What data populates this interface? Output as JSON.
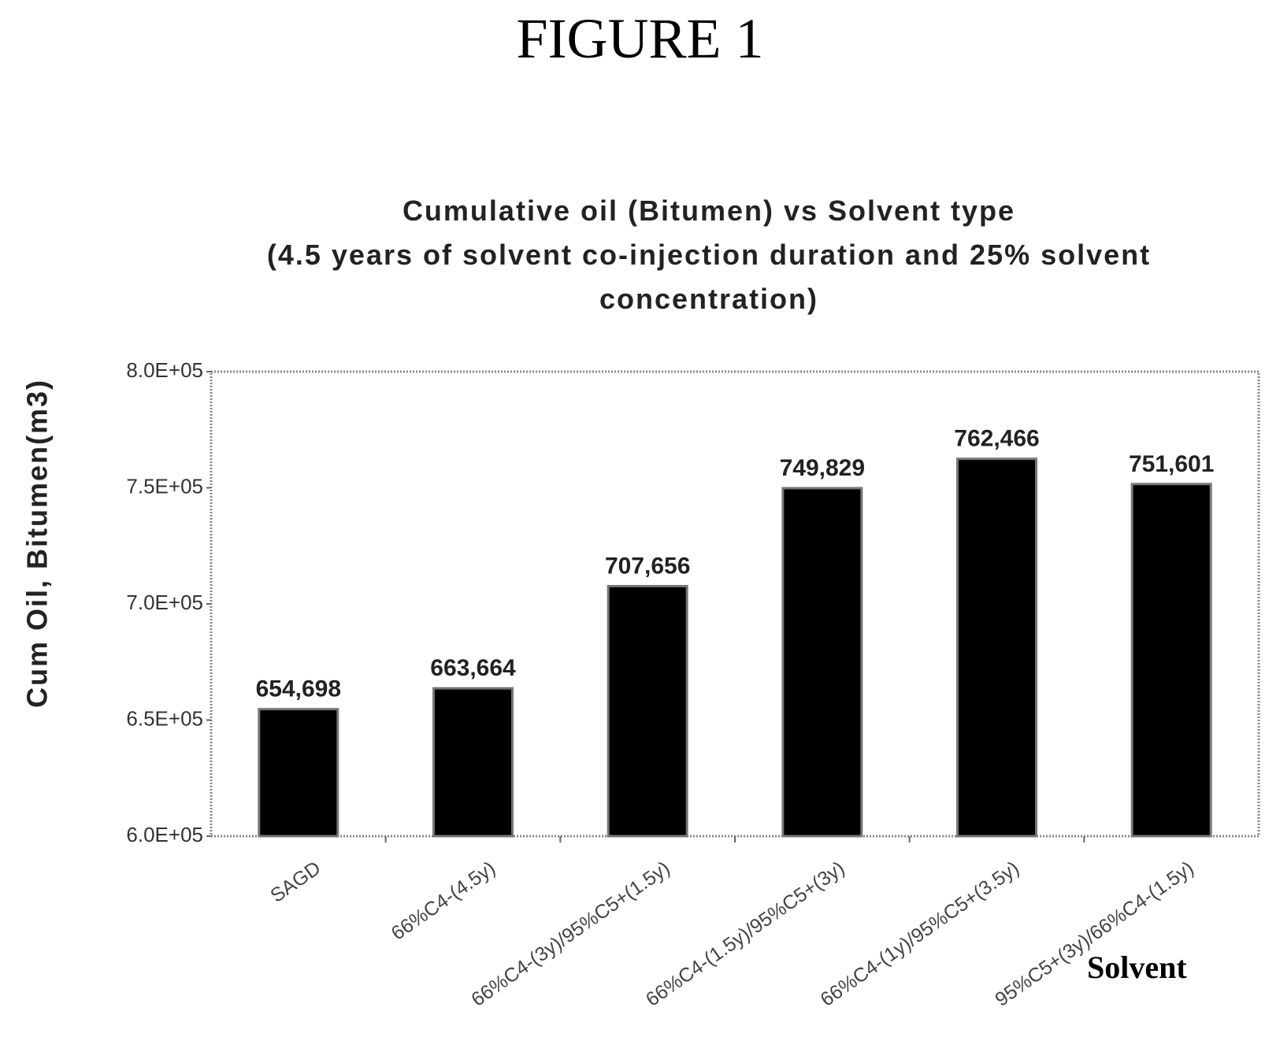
{
  "figure_label": "FIGURE 1",
  "chart_data": {
    "type": "bar",
    "title_lines": [
      "Cumulative oil (Bitumen) vs Solvent type",
      "(4.5 years of solvent co-injection duration and 25% solvent",
      "concentration)"
    ],
    "xlabel": "Solvent",
    "ylabel": "Cum Oil, Bitumen(m3)",
    "ylim": [
      600000,
      800000
    ],
    "yticks": [
      600000,
      650000,
      700000,
      750000,
      800000
    ],
    "ytick_labels": [
      "6.0E+05",
      "6.5E+05",
      "7.0E+05",
      "7.5E+05",
      "8.0E+05"
    ],
    "categories": [
      "SAGD",
      "66%C4-(4.5y)",
      "66%C4-(3y)/95%C5+(1.5y)",
      "66%C4-(1.5y)/95%C5+(3y)",
      "66%C4-(1y)/95%C5+(3.5y)",
      "95%C5+(3y)/66%C4-(1.5y)"
    ],
    "values": [
      654698,
      663664,
      707656,
      749829,
      762466,
      751601
    ],
    "value_labels": [
      "654,698",
      "663,664",
      "707,656",
      "749,829",
      "762,466",
      "751,601"
    ],
    "bar_color": "#000000",
    "grid": false
  }
}
